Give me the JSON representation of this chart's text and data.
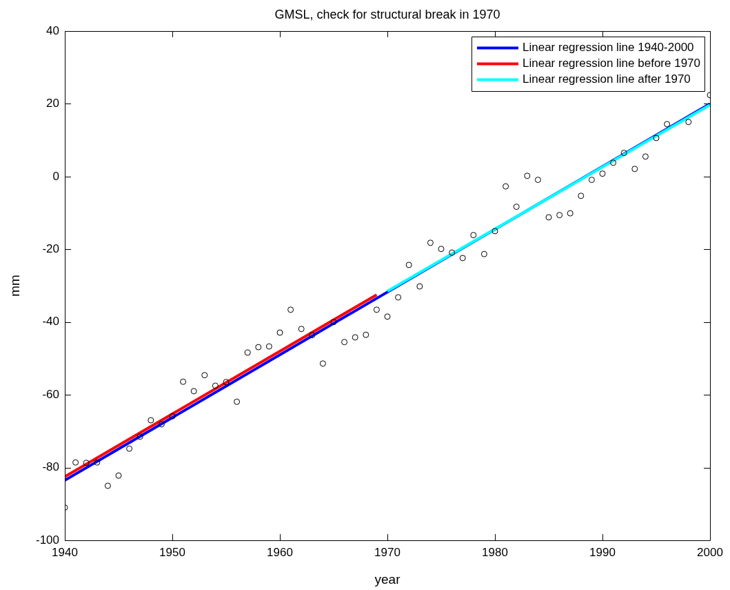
{
  "chart_data": {
    "type": "scatter",
    "title": "GMSL, check for structural break in 1970",
    "xlabel": "year",
    "ylabel": "mm",
    "xlim": [
      1940,
      2000
    ],
    "xticks": [
      1940,
      1950,
      1960,
      1970,
      1980,
      1990,
      2000
    ],
    "ylim": [
      -100,
      40
    ],
    "yticks": [
      -100,
      -80,
      -60,
      -40,
      -20,
      0,
      20,
      40
    ],
    "grid": false,
    "legend": "top right",
    "series": [
      {
        "marker": "circle",
        "color": "#000000",
        "x": [
          1940,
          1941,
          1942,
          1943,
          1944,
          1945,
          1946,
          1947,
          1948,
          1949,
          1950,
          1951,
          1952,
          1953,
          1954,
          1955,
          1956,
          1957,
          1958,
          1959,
          1960,
          1961,
          1962,
          1963,
          1964,
          1965,
          1966,
          1967,
          1968,
          1969,
          1970,
          1971,
          1972,
          1973,
          1974,
          1975,
          1976,
          1977,
          1978,
          1979,
          1980,
          1981,
          1982,
          1983,
          1984,
          1985,
          1986,
          1987,
          1988,
          1989,
          1990,
          1991,
          1992,
          1993,
          1994,
          1995,
          1996,
          1998,
          2000
        ],
        "values": [
          -91,
          -78.6,
          -78.7,
          -78.6,
          -85,
          -82.2,
          -74.8,
          -71.5,
          -67,
          -68.1,
          -65.9,
          -56.4,
          -59,
          -54.6,
          -57.5,
          -56.5,
          -61.9,
          -48.4,
          -46.9,
          -46.7,
          -42.9,
          -36.6,
          -41.9,
          -43.6,
          -51.4,
          -40,
          -45.5,
          -44.2,
          -43.5,
          -36.6,
          -38.5,
          -33.2,
          -24.3,
          -30.2,
          -18.2,
          -19.9,
          -20.9,
          -22.4,
          -16.1,
          -21.3,
          -15,
          -2.7,
          -8.3,
          0.2,
          -0.9,
          -11.2,
          -10.6,
          -10.1,
          -5.3,
          -0.9,
          0.8,
          3.8,
          6.5,
          2.1,
          5.5,
          10.6,
          14.4,
          15,
          22.4
        ]
      },
      {
        "type": "line",
        "name": "Linear regression line 1940-2000",
        "color": "#0000ff",
        "x": [
          1940,
          2000
        ],
        "values": [
          -83.5,
          20
        ]
      },
      {
        "type": "line",
        "name": "Linear regression line before 1970",
        "color": "#ff0000",
        "x": [
          1940,
          1969
        ],
        "values": [
          -82.5,
          -32.5
        ]
      },
      {
        "type": "line",
        "name": "Linear regression line after 1970",
        "color": "#00ffff",
        "x": [
          1970,
          2000
        ],
        "values": [
          -31.5,
          19.7
        ]
      }
    ]
  }
}
